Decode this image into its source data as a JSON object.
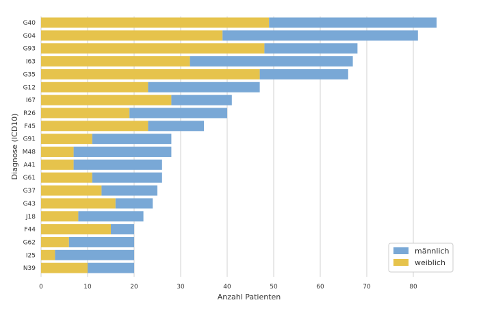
{
  "chart_data": {
    "type": "bar",
    "orientation": "horizontal",
    "stacked": true,
    "categories": [
      "G40",
      "G04",
      "G93",
      "I63",
      "G35",
      "G12",
      "I67",
      "R26",
      "F45",
      "G91",
      "M48",
      "A41",
      "G61",
      "G37",
      "G43",
      "J18",
      "F44",
      "G62",
      "I25",
      "N39"
    ],
    "series": [
      {
        "name": "weiblich",
        "color": "#e6c34c",
        "values": [
          49,
          39,
          48,
          32,
          47,
          23,
          28,
          19,
          23,
          11,
          7,
          7,
          11,
          13,
          16,
          8,
          15,
          6,
          3,
          10
        ]
      },
      {
        "name": "männlich",
        "color": "#79a8d6",
        "values": [
          36,
          42,
          20,
          35,
          19,
          24,
          13,
          21,
          12,
          17,
          21,
          19,
          15,
          12,
          8,
          14,
          5,
          14,
          17,
          10
        ]
      }
    ],
    "totals": [
      85,
      81,
      68,
      67,
      66,
      47,
      41,
      40,
      35,
      28,
      28,
      26,
      26,
      25,
      24,
      22,
      20,
      20,
      20,
      20
    ],
    "xlabel": "Anzahl Patienten",
    "ylabel": "Diagnose (ICD10)",
    "xlim": [
      0,
      85
    ],
    "xticks": [
      0,
      10,
      20,
      30,
      40,
      50,
      60,
      70,
      80
    ],
    "grid": "vertical",
    "legend": {
      "placement": "bottom-right",
      "entries": [
        {
          "label": "männlich",
          "color": "#79a8d6"
        },
        {
          "label": "weiblich",
          "color": "#e6c34c"
        }
      ]
    }
  }
}
